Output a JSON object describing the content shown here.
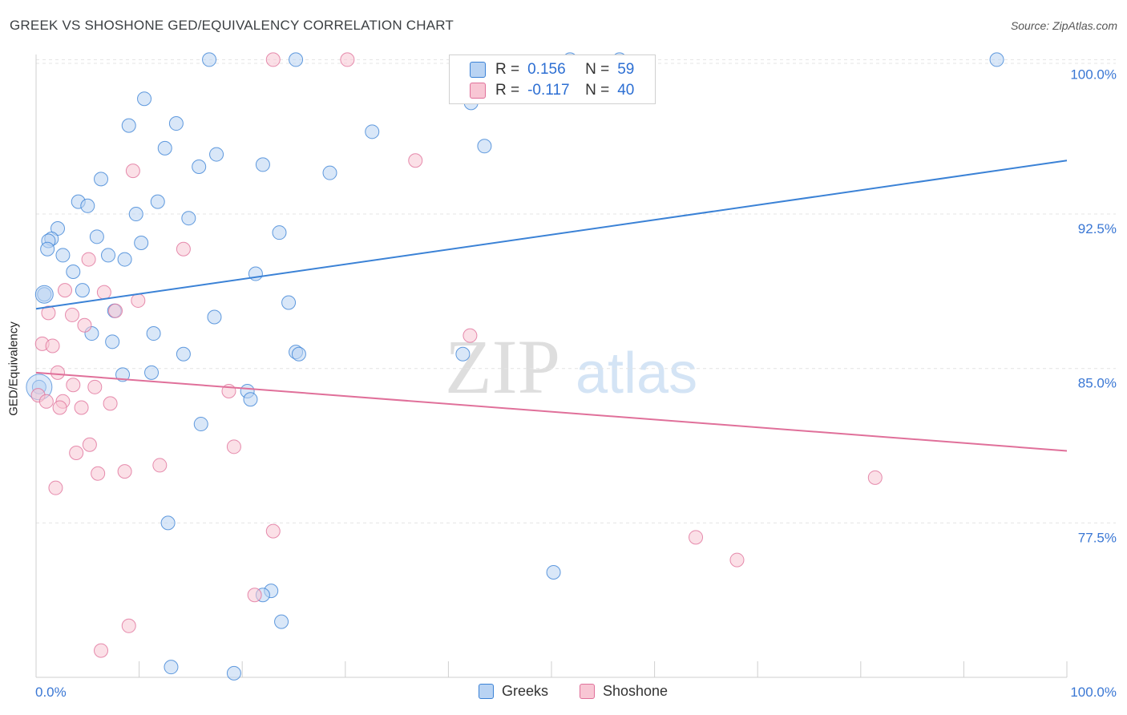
{
  "title": "GREEK VS SHOSHONE GED/EQUIVALENCY CORRELATION CHART",
  "source": "Source: ZipAtlas.com",
  "watermark": {
    "left": "ZIP",
    "right": "atlas"
  },
  "colors": {
    "greeks": "#3b82d6",
    "shoshone": "#e0709a",
    "greeks_fill": "#b9d3f3",
    "shoshone_fill": "#f8c6d4",
    "tick_label": "#3a77d4"
  },
  "stats_legend": {
    "greeks": {
      "r_label": "R =",
      "r_value": "0.156",
      "n_label": "N =",
      "n_value": "59"
    },
    "shoshone": {
      "r_label": "R =",
      "r_value": "-0.117",
      "n_label": "N =",
      "n_value": "40"
    }
  },
  "legend": {
    "greeks": "Greeks",
    "shoshone": "Shoshone"
  },
  "chart_data": {
    "type": "scatter",
    "title": "GREEK VS SHOSHONE GED/EQUIVALENCY CORRELATION CHART",
    "xlabel": "",
    "ylabel": "GED/Equivalency",
    "xlim": [
      0,
      100
    ],
    "ylim": [
      70.0,
      100.6
    ],
    "x_tick_labels": [
      "0.0%",
      "100.0%"
    ],
    "y_ticks": [
      77.5,
      85.0,
      92.5,
      100.0
    ],
    "y_tick_labels": [
      "77.5%",
      "85.0%",
      "92.5%",
      "100.0%"
    ],
    "grid": true,
    "legend_position": "bottom-center",
    "series": [
      {
        "name": "Greeks",
        "r": 0.156,
        "n": 59,
        "trend": {
          "x": [
            0,
            100
          ],
          "y": [
            87.9,
            95.1
          ]
        },
        "points": [
          {
            "x": 16.8,
            "y": 100.0
          },
          {
            "x": 25.2,
            "y": 100.0
          },
          {
            "x": 51.8,
            "y": 100.0
          },
          {
            "x": 56.6,
            "y": 100.0
          },
          {
            "x": 93.2,
            "y": 100.0
          },
          {
            "x": 10.5,
            "y": 98.1
          },
          {
            "x": 42.2,
            "y": 97.9
          },
          {
            "x": 9.0,
            "y": 96.8
          },
          {
            "x": 13.6,
            "y": 96.9
          },
          {
            "x": 32.6,
            "y": 96.5
          },
          {
            "x": 12.5,
            "y": 95.7
          },
          {
            "x": 17.5,
            "y": 95.4
          },
          {
            "x": 43.5,
            "y": 95.8
          },
          {
            "x": 22.0,
            "y": 94.9
          },
          {
            "x": 15.8,
            "y": 94.8
          },
          {
            "x": 28.5,
            "y": 94.5
          },
          {
            "x": 6.3,
            "y": 94.2
          },
          {
            "x": 4.1,
            "y": 93.1
          },
          {
            "x": 5.0,
            "y": 92.9
          },
          {
            "x": 11.8,
            "y": 93.1
          },
          {
            "x": 9.7,
            "y": 92.5
          },
          {
            "x": 14.8,
            "y": 92.3
          },
          {
            "x": 2.1,
            "y": 91.8
          },
          {
            "x": 1.5,
            "y": 91.3
          },
          {
            "x": 5.9,
            "y": 91.4
          },
          {
            "x": 23.6,
            "y": 91.6
          },
          {
            "x": 1.2,
            "y": 91.2
          },
          {
            "x": 10.2,
            "y": 91.1
          },
          {
            "x": 1.1,
            "y": 90.8
          },
          {
            "x": 2.6,
            "y": 90.5
          },
          {
            "x": 7.0,
            "y": 90.5
          },
          {
            "x": 8.6,
            "y": 90.3
          },
          {
            "x": 3.6,
            "y": 89.7
          },
          {
            "x": 21.3,
            "y": 89.6
          },
          {
            "x": 4.5,
            "y": 88.8
          },
          {
            "x": 0.8,
            "y": 88.6
          },
          {
            "x": 24.5,
            "y": 88.2
          },
          {
            "x": 7.6,
            "y": 87.8
          },
          {
            "x": 17.3,
            "y": 87.5
          },
          {
            "x": 5.4,
            "y": 86.7
          },
          {
            "x": 11.4,
            "y": 86.7
          },
          {
            "x": 7.4,
            "y": 86.3
          },
          {
            "x": 25.2,
            "y": 85.8
          },
          {
            "x": 25.5,
            "y": 85.7
          },
          {
            "x": 14.3,
            "y": 85.7
          },
          {
            "x": 41.4,
            "y": 85.7
          },
          {
            "x": 8.4,
            "y": 84.7
          },
          {
            "x": 11.2,
            "y": 84.8
          },
          {
            "x": 0.3,
            "y": 84.1
          },
          {
            "x": 20.5,
            "y": 83.9
          },
          {
            "x": 20.8,
            "y": 83.5
          },
          {
            "x": 16.0,
            "y": 82.3
          },
          {
            "x": 12.8,
            "y": 77.5
          },
          {
            "x": 50.2,
            "y": 75.1
          },
          {
            "x": 22.8,
            "y": 74.2
          },
          {
            "x": 22.0,
            "y": 74.0
          },
          {
            "x": 23.8,
            "y": 72.7
          },
          {
            "x": 13.1,
            "y": 70.5
          },
          {
            "x": 19.2,
            "y": 70.2
          }
        ]
      },
      {
        "name": "Shoshone",
        "r": -0.117,
        "n": 40,
        "trend": {
          "x": [
            0,
            100
          ],
          "y": [
            84.8,
            81.0
          ]
        },
        "points": [
          {
            "x": 23.0,
            "y": 100.0
          },
          {
            "x": 30.2,
            "y": 100.0
          },
          {
            "x": 36.8,
            "y": 95.1
          },
          {
            "x": 9.4,
            "y": 94.6
          },
          {
            "x": 14.3,
            "y": 90.8
          },
          {
            "x": 5.1,
            "y": 90.3
          },
          {
            "x": 2.8,
            "y": 88.8
          },
          {
            "x": 6.6,
            "y": 88.7
          },
          {
            "x": 9.9,
            "y": 88.3
          },
          {
            "x": 1.2,
            "y": 87.7
          },
          {
            "x": 3.5,
            "y": 87.6
          },
          {
            "x": 7.7,
            "y": 87.8
          },
          {
            "x": 4.7,
            "y": 87.1
          },
          {
            "x": 0.6,
            "y": 86.2
          },
          {
            "x": 1.6,
            "y": 86.1
          },
          {
            "x": 42.1,
            "y": 86.6
          },
          {
            "x": 2.1,
            "y": 84.8
          },
          {
            "x": 0.2,
            "y": 83.7
          },
          {
            "x": 1.0,
            "y": 83.4
          },
          {
            "x": 3.6,
            "y": 84.2
          },
          {
            "x": 5.7,
            "y": 84.1
          },
          {
            "x": 18.7,
            "y": 83.9
          },
          {
            "x": 2.6,
            "y": 83.4
          },
          {
            "x": 2.3,
            "y": 83.1
          },
          {
            "x": 4.4,
            "y": 83.1
          },
          {
            "x": 7.2,
            "y": 83.3
          },
          {
            "x": 5.2,
            "y": 81.3
          },
          {
            "x": 3.9,
            "y": 80.9
          },
          {
            "x": 19.2,
            "y": 81.2
          },
          {
            "x": 12.0,
            "y": 80.3
          },
          {
            "x": 6.0,
            "y": 79.9
          },
          {
            "x": 8.6,
            "y": 80.0
          },
          {
            "x": 1.9,
            "y": 79.2
          },
          {
            "x": 81.4,
            "y": 79.7
          },
          {
            "x": 23.0,
            "y": 77.1
          },
          {
            "x": 64.0,
            "y": 76.8
          },
          {
            "x": 68.0,
            "y": 75.7
          },
          {
            "x": 21.2,
            "y": 74.0
          },
          {
            "x": 9.0,
            "y": 72.5
          },
          {
            "x": 6.3,
            "y": 71.3
          }
        ]
      }
    ]
  }
}
